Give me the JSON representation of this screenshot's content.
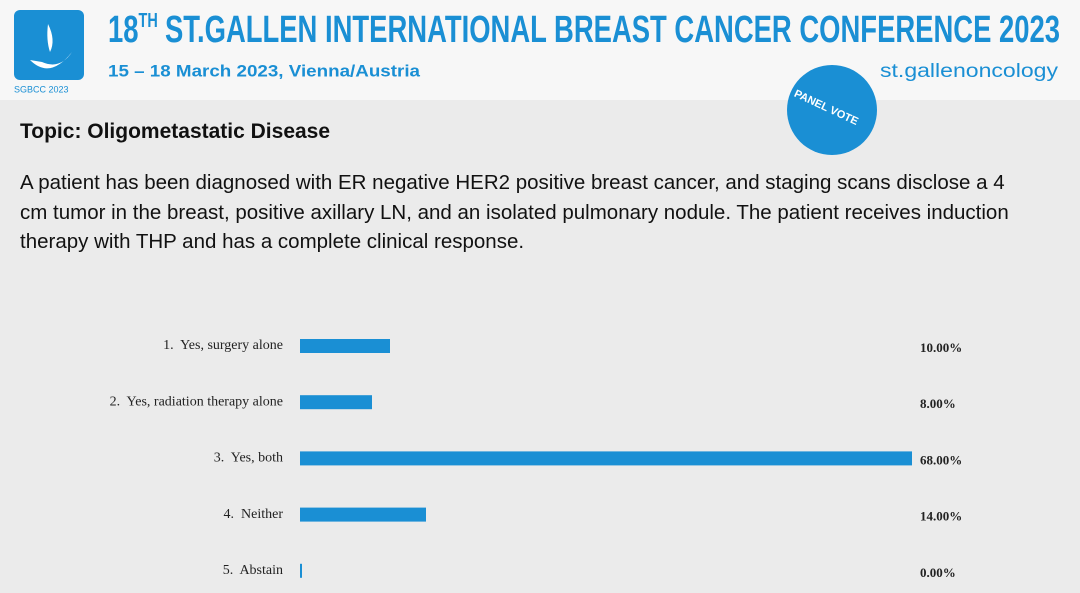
{
  "header": {
    "logo": "SGBCC 2023",
    "title_number": "18",
    "title_superscript": "TH",
    "title": "ST.GALLEN INTERNATIONAL BREAST CANCER CONFERENCE 2023",
    "subtitle": "15 – 18 March 2023, Vienna/Austria",
    "brand": "st.gallenoncology",
    "badge": "PANEL VOTE"
  },
  "topic": "Topic: Oligometastatic Disease",
  "question": "A patient has been diagnosed with ER negative HER2 positive breast cancer, and staging scans disclose a 4 cm tumor in the breast, positive axillary LN, and an isolated pulmonary nodule.  The patient receives induction therapy with THP and has a complete clinical response.",
  "chart_data": {
    "type": "bar",
    "orientation": "horizontal",
    "color": "#1a8fd4",
    "categories": [
      "1.  Yes, surgery alone",
      "2.  Yes, radiation therapy alone",
      "3.  Yes, both",
      "4.  Neither",
      "5.  Abstain"
    ],
    "values": [
      10,
      8,
      68,
      14,
      0
    ],
    "value_labels": [
      "10.00%",
      "8.00%",
      "68.00%",
      "14.00%",
      "0.00%"
    ]
  }
}
